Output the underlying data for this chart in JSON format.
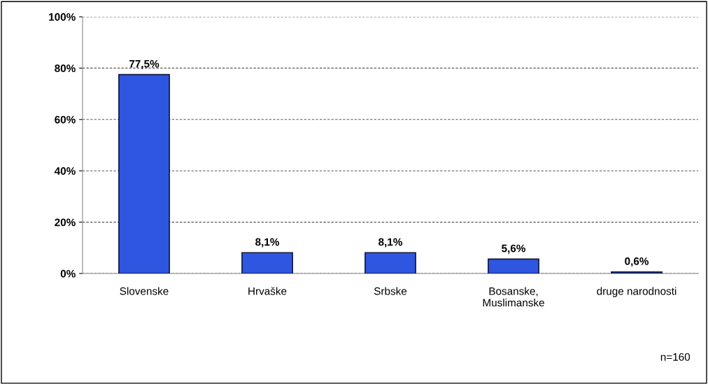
{
  "chart_data": {
    "type": "bar",
    "categories": [
      "Slovenske",
      "Hrvaške",
      "Srbske",
      "Bosanske,\nMuslimanske",
      "druge narodnosti"
    ],
    "values": [
      77.5,
      8.1,
      8.1,
      5.6,
      0.6
    ],
    "value_labels": [
      "77,5%",
      "8,1%",
      "8,1%",
      "5,6%",
      "0,6%"
    ],
    "color": "#2f56e0",
    "ylim": [
      0,
      100
    ],
    "yticks": [
      {
        "value": 0,
        "label": "0%"
      },
      {
        "value": 20,
        "label": "20%"
      },
      {
        "value": 40,
        "label": "40%"
      },
      {
        "value": 60,
        "label": "60%"
      },
      {
        "value": 80,
        "label": "80%"
      },
      {
        "value": 100,
        "label": "100%"
      }
    ],
    "grid": "y",
    "line_style": "dashed",
    "annotations": [
      "n=160"
    ]
  }
}
